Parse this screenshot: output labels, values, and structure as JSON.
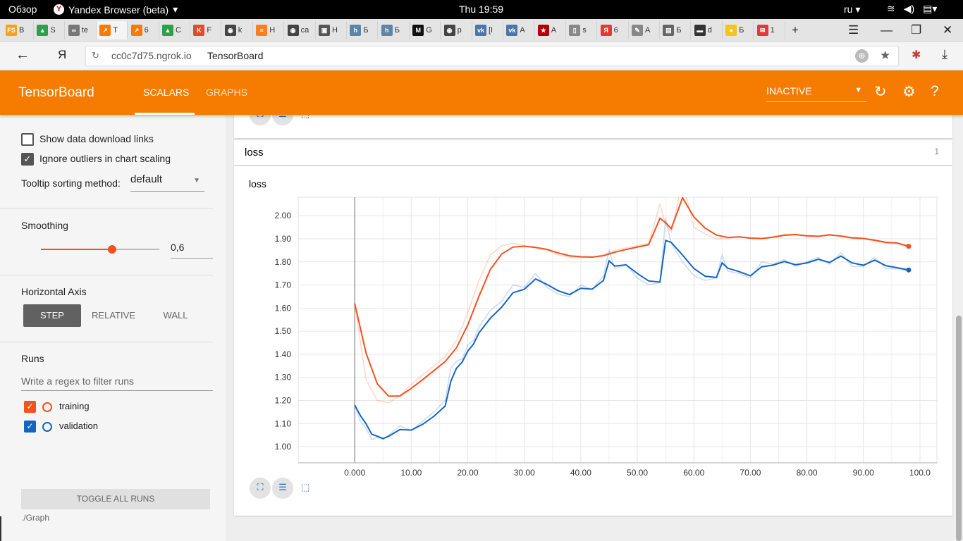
{
  "system": {
    "overview": "Обзор",
    "app_name": "Yandex Browser (beta)",
    "clock": "Thu 19:59",
    "lang": "ru",
    "tray_icons": [
      "wifi-icon",
      "volume-icon",
      "clipboard-icon"
    ]
  },
  "tabs": [
    {
      "label": "B",
      "icon": "FS",
      "color": "#f4a11d"
    },
    {
      "label": "S",
      "icon": "▲",
      "color": "#2e9f4b"
    },
    {
      "label": "te",
      "icon": "∞",
      "color": "#777777"
    },
    {
      "label": "T",
      "icon": "↗",
      "color": "#f57c00",
      "active": true
    },
    {
      "label": "6",
      "icon": "↗",
      "color": "#f57c00"
    },
    {
      "label": "C",
      "icon": "▲",
      "color": "#2e9f4b"
    },
    {
      "label": "F",
      "icon": "K",
      "color": "#e04b2c"
    },
    {
      "label": "k",
      "icon": "◉",
      "color": "#444444"
    },
    {
      "label": "H",
      "icon": "≡",
      "color": "#f48024"
    },
    {
      "label": "ca",
      "icon": "◉",
      "color": "#444444"
    },
    {
      "label": "H",
      "icon": "▣",
      "color": "#555555"
    },
    {
      "label": "Б",
      "icon": "h",
      "color": "#5b86a8"
    },
    {
      "label": "Б",
      "icon": "h",
      "color": "#5b86a8"
    },
    {
      "label": "G",
      "icon": "M",
      "color": "#111111"
    },
    {
      "label": "p",
      "icon": "◉",
      "color": "#444444"
    },
    {
      "label": "[I",
      "icon": "vk",
      "color": "#4a76a8"
    },
    {
      "label": "A",
      "icon": "vk",
      "color": "#4a76a8"
    },
    {
      "label": "A",
      "icon": "★",
      "color": "#b00000"
    },
    {
      "label": "s",
      "icon": "▯",
      "color": "#888888"
    },
    {
      "label": "6",
      "icon": "Я",
      "color": "#e53935"
    },
    {
      "label": "A",
      "icon": "✎",
      "color": "#888888"
    },
    {
      "label": "Б",
      "icon": "▤",
      "color": "#666666"
    },
    {
      "label": "d",
      "icon": "▬",
      "color": "#333333"
    },
    {
      "label": "Б",
      "icon": "●",
      "color": "#f7c31a"
    },
    {
      "label": "1",
      "icon": "✉",
      "color": "#e53935"
    }
  ],
  "addressbar": {
    "back_icon": "arrow-left-icon",
    "ya": "Я",
    "host": "cc0c7d75.ngrok.io",
    "page_title": "TensorBoard"
  },
  "header": {
    "brand": "TensorBoard",
    "tab_scalars": "SCALARS",
    "tab_graphs": "GRAPHS",
    "status": "INACTIVE"
  },
  "sidebar": {
    "show_download": "Show data download links",
    "ignore_outliers": "Ignore outliers in chart scaling",
    "show_download_checked": false,
    "ignore_outliers_checked": true,
    "tooltip_label": "Tooltip sorting method:",
    "tooltip_value": "default",
    "smoothing_label": "Smoothing",
    "smoothing_value": "0,6",
    "smoothing_fraction": 0.6,
    "haxis_label": "Horizontal Axis",
    "haxis_step": "STEP",
    "haxis_relative": "RELATIVE",
    "haxis_wall": "WALL",
    "runs_label": "Runs",
    "regex_placeholder": "Write a regex to filter runs",
    "runs": [
      {
        "name": "training",
        "color": "#f4511e",
        "checked": true
      },
      {
        "name": "validation",
        "color": "#1565c0",
        "checked": true
      }
    ],
    "toggle_all": "TOGGLE ALL RUNS",
    "graph_path": "./Graph"
  },
  "main": {
    "group_name": "loss",
    "group_count": "1",
    "chart_title": "loss"
  },
  "chart_data": {
    "type": "line",
    "title": "loss",
    "xlabel": "",
    "ylabel": "",
    "xlim": [
      -10,
      103
    ],
    "ylim": [
      0.93,
      2.08
    ],
    "x_ticks": [
      "0.000",
      "10.00",
      "20.00",
      "30.00",
      "40.00",
      "50.00",
      "60.00",
      "70.00",
      "80.00",
      "90.00",
      "100.0"
    ],
    "y_ticks": [
      "1.00",
      "1.10",
      "1.20",
      "1.30",
      "1.40",
      "1.50",
      "1.60",
      "1.70",
      "1.80",
      "1.90",
      "2.00"
    ],
    "grid": true,
    "series": [
      {
        "name": "training",
        "color": "#f4511e",
        "x": [
          0,
          2,
          4,
          6,
          8,
          10,
          12,
          14,
          16,
          18,
          20,
          22,
          24,
          26,
          28,
          30,
          32,
          34,
          36,
          38,
          40,
          42,
          44,
          46,
          48,
          50,
          52,
          54,
          55,
          56,
          58,
          60,
          62,
          64,
          66,
          68,
          70,
          72,
          74,
          76,
          78,
          80,
          82,
          84,
          86,
          88,
          90,
          92,
          94,
          96,
          98
        ],
        "values": [
          1.62,
          1.29,
          1.2,
          1.19,
          1.22,
          1.27,
          1.31,
          1.35,
          1.39,
          1.46,
          1.58,
          1.72,
          1.83,
          1.87,
          1.88,
          1.87,
          1.86,
          1.85,
          1.83,
          1.82,
          1.82,
          1.82,
          1.83,
          1.85,
          1.86,
          1.87,
          1.88,
          2.05,
          1.96,
          1.93,
          2.15,
          1.95,
          1.92,
          1.9,
          1.9,
          1.91,
          1.9,
          1.9,
          1.91,
          1.92,
          1.92,
          1.91,
          1.91,
          1.92,
          1.91,
          1.9,
          1.9,
          1.89,
          1.88,
          1.88,
          1.86
        ]
      },
      {
        "name": "validation",
        "color": "#1565c0",
        "x": [
          0,
          1,
          2,
          3,
          4,
          5,
          6,
          8,
          10,
          12,
          14,
          16,
          17,
          18,
          19,
          20,
          21,
          22,
          24,
          26,
          28,
          30,
          32,
          34,
          36,
          38,
          40,
          42,
          44,
          45,
          46,
          48,
          50,
          52,
          54,
          55,
          56,
          58,
          60,
          62,
          64,
          65,
          66,
          68,
          70,
          72,
          74,
          76,
          78,
          80,
          82,
          84,
          86,
          88,
          90,
          92,
          94,
          96,
          98
        ],
        "values": [
          1.18,
          1.11,
          1.08,
          1.03,
          1.04,
          1.03,
          1.05,
          1.09,
          1.07,
          1.11,
          1.15,
          1.2,
          1.34,
          1.37,
          1.38,
          1.44,
          1.46,
          1.52,
          1.59,
          1.63,
          1.7,
          1.69,
          1.75,
          1.69,
          1.66,
          1.65,
          1.7,
          1.68,
          1.74,
          1.85,
          1.77,
          1.79,
          1.73,
          1.7,
          1.71,
          1.99,
          1.88,
          1.8,
          1.74,
          1.72,
          1.73,
          1.83,
          1.76,
          1.75,
          1.73,
          1.8,
          1.79,
          1.81,
          1.78,
          1.8,
          1.82,
          1.79,
          1.84,
          1.78,
          1.78,
          1.82,
          1.77,
          1.77,
          1.76
        ]
      }
    ]
  }
}
